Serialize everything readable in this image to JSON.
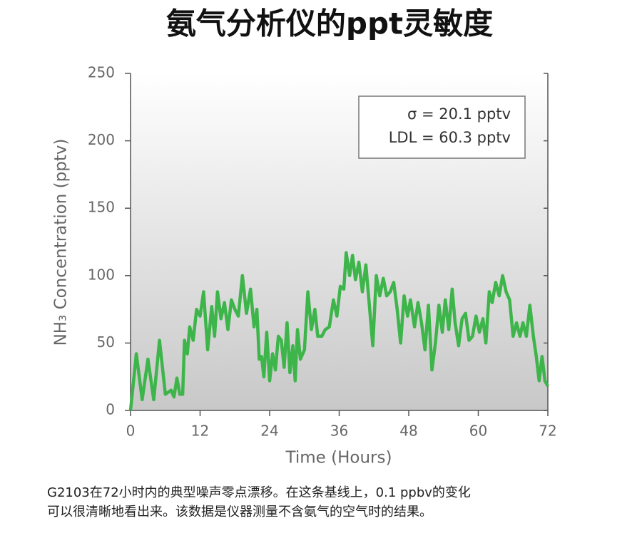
{
  "chart_data": {
    "type": "line",
    "title": "氨气分析仪的ppt灵敏度",
    "x_label": "Time (Hours)",
    "y_label": "NH₃ Concentration (pptv)",
    "annotations": [
      "σ = 20.1 pptv",
      "LDL = 60.3 pptv"
    ],
    "caption": [
      "G2103在72小时内的典型噪声零点漂移。在这条基线上，0.1 ppbv的变化",
      "可以很清晰地看出来。该数据是仪器测量不含氨气的空气时的结果。"
    ],
    "xlim": [
      0,
      72
    ],
    "xticks": [
      0,
      12,
      24,
      36,
      48,
      60,
      72
    ],
    "ylim": [
      0,
      250
    ],
    "yticks": [
      0,
      50,
      100,
      150,
      200,
      250
    ],
    "series": [
      {
        "color": "#3db54a",
        "x": [
          0,
          1,
          2,
          3,
          4,
          5,
          6,
          7,
          7.5,
          8,
          8.5,
          9,
          9.3,
          9.8,
          10.2,
          10.8,
          11.4,
          12,
          12.6,
          13.3,
          14,
          14.5,
          15,
          15.6,
          16.2,
          16.8,
          17.4,
          18,
          18.6,
          19.3,
          20,
          20.7,
          21.3,
          21.8,
          22.2,
          22.6,
          23,
          23.5,
          24,
          24.5,
          25,
          25.5,
          26,
          26.5,
          27,
          27.5,
          28,
          28.4,
          28.8,
          29.3,
          30,
          30.6,
          31.2,
          31.8,
          32.3,
          33,
          33.6,
          34.3,
          35,
          35.6,
          36.2,
          36.8,
          37.2,
          37.8,
          38.3,
          38.8,
          39.4,
          40,
          40.6,
          41.2,
          41.8,
          42.4,
          43,
          43.6,
          44.2,
          44.8,
          45.4,
          46,
          46.6,
          47.2,
          47.8,
          48.3,
          49,
          49.6,
          50.2,
          50.8,
          51.4,
          52,
          52.6,
          53.2,
          53.8,
          54.3,
          54.9,
          55.5,
          56,
          56.6,
          57.2,
          57.8,
          58.4,
          59,
          59.6,
          60.2,
          60.8,
          61.3,
          61.9,
          62.4,
          63,
          63.6,
          64.2,
          64.8,
          65.4,
          66,
          66.6,
          67.2,
          67.7,
          68.3,
          68.9,
          69.5,
          70,
          70.5,
          71,
          71.5,
          72
        ],
        "values": [
          0,
          42,
          8,
          38,
          8,
          52,
          12,
          15,
          10,
          24,
          12,
          12,
          52,
          42,
          62,
          52,
          75,
          70,
          88,
          45,
          77,
          55,
          88,
          68,
          80,
          60,
          82,
          75,
          70,
          100,
          72,
          90,
          62,
          75,
          38,
          40,
          25,
          58,
          22,
          42,
          30,
          55,
          52,
          32,
          65,
          28,
          48,
          22,
          60,
          38,
          45,
          88,
          60,
          75,
          55,
          55,
          60,
          62,
          82,
          70,
          92,
          90,
          117,
          100,
          115,
          97,
          110,
          88,
          108,
          78,
          48,
          100,
          85,
          98,
          85,
          88,
          95,
          75,
          50,
          85,
          70,
          82,
          62,
          80,
          65,
          45,
          78,
          30,
          50,
          78,
          58,
          82,
          60,
          90,
          65,
          48,
          68,
          72,
          52,
          55,
          70,
          58,
          68,
          50,
          88,
          80,
          95,
          85,
          100,
          88,
          82,
          55,
          65,
          55,
          65,
          55,
          78,
          55,
          40,
          22,
          40,
          22,
          18
        ]
      }
    ]
  }
}
